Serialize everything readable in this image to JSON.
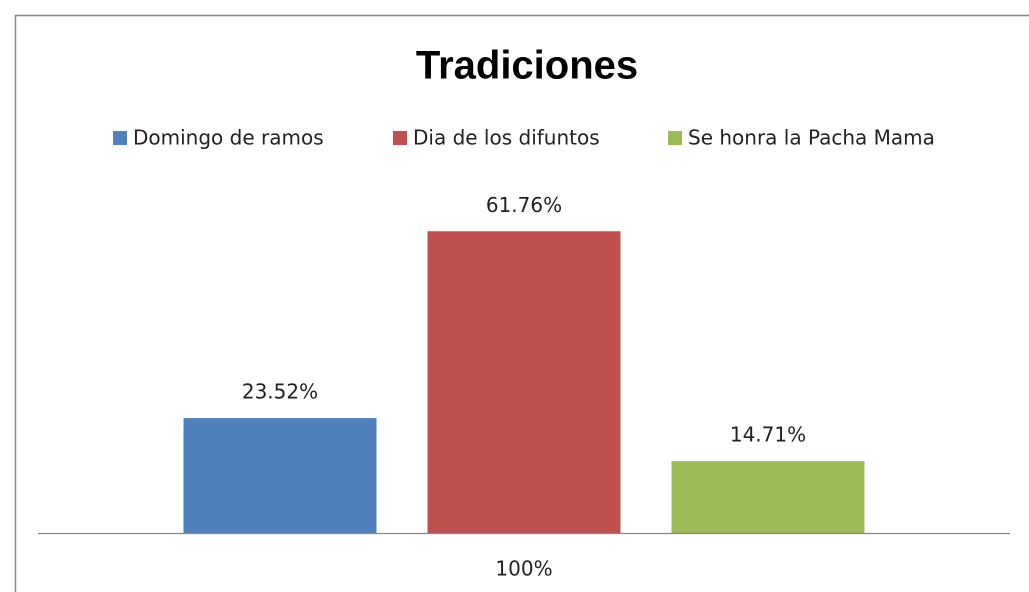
{
  "chart_data": {
    "type": "bar",
    "title": "Tradiciones",
    "categories": [
      "100%"
    ],
    "series": [
      {
        "name": "Domingo  de ramos",
        "color": "#4f81bd",
        "values": [
          23.52
        ],
        "value_labels": [
          "23.52%"
        ]
      },
      {
        "name": "Dia de los difuntos",
        "color": "#c0504d",
        "values": [
          61.76
        ],
        "value_labels": [
          "61.76%"
        ]
      },
      {
        "name": "Se honra la Pacha Mama",
        "color": "#9bbb59",
        "values": [
          14.71
        ],
        "value_labels": [
          "14.71%"
        ]
      }
    ],
    "ylim": [
      0,
      70
    ],
    "legend": "top"
  }
}
